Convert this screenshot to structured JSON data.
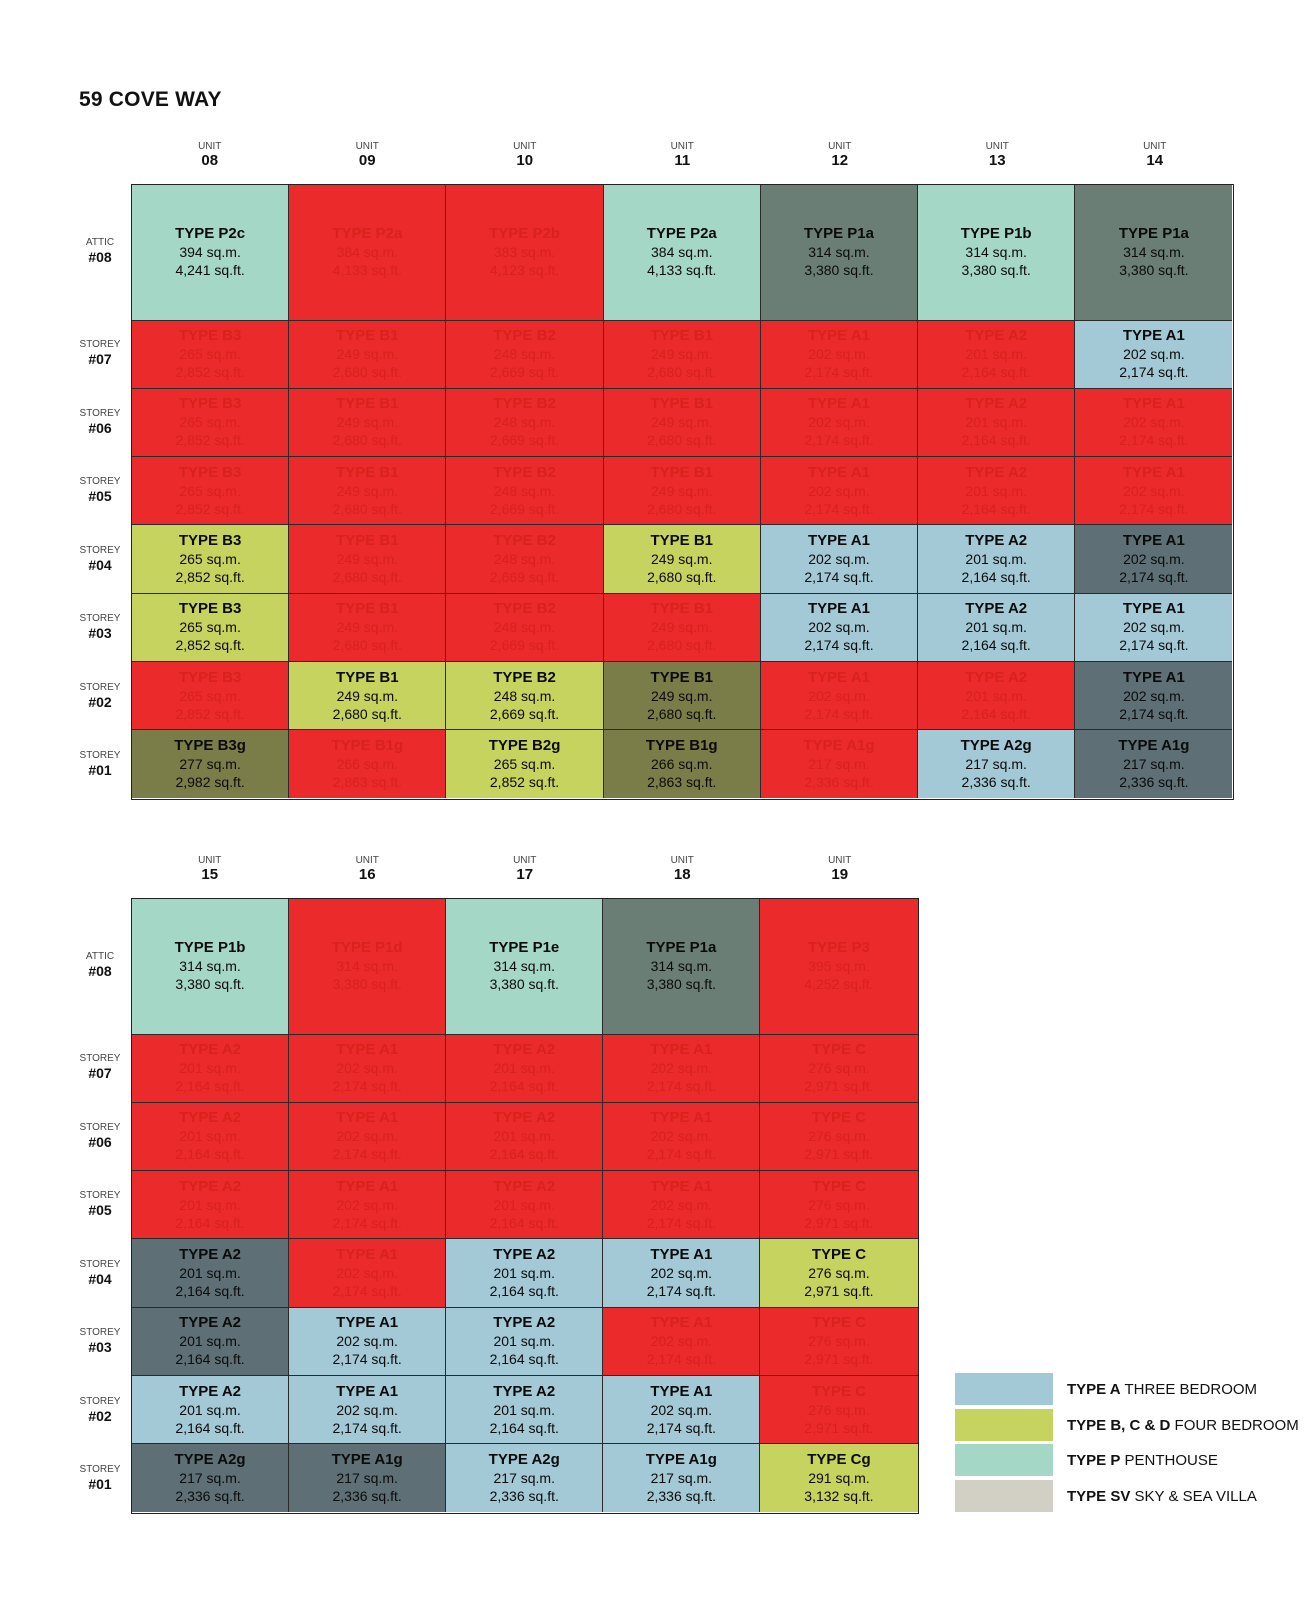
{
  "title": "59 COVE WAY",
  "colors": {
    "typeA": "#a3c9d6",
    "typeB": "#c6d35e",
    "typeP": "#a5d7c7",
    "typeSV": "#d2d0c4",
    "sold": "#ea2a2b",
    "darkgrey": "#5e7075",
    "greygreen": "#6a7e76",
    "olive": "#7b7d48"
  },
  "unit_label": "UNIT",
  "attic_label": "ATTIC",
  "storey_label": "STOREY",
  "block1": {
    "units": [
      "08",
      "09",
      "10",
      "11",
      "12",
      "13",
      "14"
    ],
    "rows": [
      {
        "label": "ATTIC",
        "num": "#08",
        "cells": [
          {
            "type": "TYPE P2c",
            "sqm": "394 sq.m.",
            "sqft": "4,241 sq.ft.",
            "bg": "typeP",
            "sold": false
          },
          {
            "type": "TYPE P2a",
            "sqm": "384 sq.m.",
            "sqft": "4,133 sq.ft.",
            "bg": "sold",
            "sold": true
          },
          {
            "type": "TYPE P2b",
            "sqm": "383 sq.m.",
            "sqft": "4,123 sq.ft.",
            "bg": "sold",
            "sold": true
          },
          {
            "type": "TYPE P2a",
            "sqm": "384 sq.m.",
            "sqft": "4,133 sq.ft.",
            "bg": "typeP",
            "sold": false
          },
          {
            "type": "TYPE P1a",
            "sqm": "314 sq.m.",
            "sqft": "3,380 sq.ft.",
            "bg": "greygreen",
            "sold": false
          },
          {
            "type": "TYPE P1b",
            "sqm": "314 sq.m.",
            "sqft": "3,380 sq.ft.",
            "bg": "typeP",
            "sold": false
          },
          {
            "type": "TYPE P1a",
            "sqm": "314 sq.m.",
            "sqft": "3,380 sq.ft.",
            "bg": "greygreen",
            "sold": false
          }
        ]
      },
      {
        "label": "STOREY",
        "num": "#07",
        "cells": [
          {
            "type": "TYPE B3",
            "sqm": "265 sq.m.",
            "sqft": "2,852 sq.ft.",
            "bg": "sold",
            "sold": true
          },
          {
            "type": "TYPE B1",
            "sqm": "249 sq.m.",
            "sqft": "2,680 sq.ft.",
            "bg": "sold",
            "sold": true
          },
          {
            "type": "TYPE B2",
            "sqm": "248 sq.m.",
            "sqft": "2,669 sq.ft.",
            "bg": "sold",
            "sold": true
          },
          {
            "type": "TYPE B1",
            "sqm": "249 sq.m.",
            "sqft": "2,680 sq.ft.",
            "bg": "sold",
            "sold": true
          },
          {
            "type": "TYPE A1",
            "sqm": "202 sq.m.",
            "sqft": "2,174 sq.ft.",
            "bg": "sold",
            "sold": true
          },
          {
            "type": "TYPE A2",
            "sqm": "201 sq.m.",
            "sqft": "2,164 sq.ft.",
            "bg": "sold",
            "sold": true
          },
          {
            "type": "TYPE A1",
            "sqm": "202 sq.m.",
            "sqft": "2,174 sq.ft.",
            "bg": "typeA",
            "sold": false
          }
        ]
      },
      {
        "label": "STOREY",
        "num": "#06",
        "cells": [
          {
            "type": "TYPE B3",
            "sqm": "265 sq.m.",
            "sqft": "2,852 sq.ft.",
            "bg": "sold",
            "sold": true
          },
          {
            "type": "TYPE B1",
            "sqm": "249 sq.m.",
            "sqft": "2,680 sq.ft.",
            "bg": "sold",
            "sold": true
          },
          {
            "type": "TYPE B2",
            "sqm": "248 sq.m.",
            "sqft": "2,669 sq.ft.",
            "bg": "sold",
            "sold": true
          },
          {
            "type": "TYPE B1",
            "sqm": "249 sq.m.",
            "sqft": "2,680 sq.ft.",
            "bg": "sold",
            "sold": true
          },
          {
            "type": "TYPE A1",
            "sqm": "202 sq.m.",
            "sqft": "2,174 sq.ft.",
            "bg": "sold",
            "sold": true
          },
          {
            "type": "TYPE A2",
            "sqm": "201 sq.m.",
            "sqft": "2,164 sq.ft.",
            "bg": "sold",
            "sold": true
          },
          {
            "type": "TYPE A1",
            "sqm": "202 sq.m.",
            "sqft": "2,174 sq.ft.",
            "bg": "sold",
            "sold": true
          }
        ]
      },
      {
        "label": "STOREY",
        "num": "#05",
        "cells": [
          {
            "type": "TYPE B3",
            "sqm": "265 sq.m.",
            "sqft": "2,852 sq.ft.",
            "bg": "sold",
            "sold": true
          },
          {
            "type": "TYPE B1",
            "sqm": "249 sq.m.",
            "sqft": "2,680 sq.ft.",
            "bg": "sold",
            "sold": true
          },
          {
            "type": "TYPE B2",
            "sqm": "248 sq.m.",
            "sqft": "2,669 sq.ft.",
            "bg": "sold",
            "sold": true
          },
          {
            "type": "TYPE B1",
            "sqm": "249 sq.m.",
            "sqft": "2,680 sq.ft.",
            "bg": "sold",
            "sold": true
          },
          {
            "type": "TYPE A1",
            "sqm": "202 sq.m.",
            "sqft": "2,174 sq.ft.",
            "bg": "sold",
            "sold": true
          },
          {
            "type": "TYPE A2",
            "sqm": "201 sq.m.",
            "sqft": "2,164 sq.ft.",
            "bg": "sold",
            "sold": true
          },
          {
            "type": "TYPE A1",
            "sqm": "202 sq.m.",
            "sqft": "2,174 sq.ft.",
            "bg": "sold",
            "sold": true
          }
        ]
      },
      {
        "label": "STOREY",
        "num": "#04",
        "cells": [
          {
            "type": "TYPE B3",
            "sqm": "265 sq.m.",
            "sqft": "2,852 sq.ft.",
            "bg": "typeB",
            "sold": false
          },
          {
            "type": "TYPE B1",
            "sqm": "249 sq.m.",
            "sqft": "2,680 sq.ft.",
            "bg": "sold",
            "sold": true
          },
          {
            "type": "TYPE B2",
            "sqm": "248 sq.m.",
            "sqft": "2,669 sq.ft.",
            "bg": "sold",
            "sold": true
          },
          {
            "type": "TYPE B1",
            "sqm": "249 sq.m.",
            "sqft": "2,680 sq.ft.",
            "bg": "typeB",
            "sold": false
          },
          {
            "type": "TYPE A1",
            "sqm": "202 sq.m.",
            "sqft": "2,174 sq.ft.",
            "bg": "typeA",
            "sold": false
          },
          {
            "type": "TYPE A2",
            "sqm": "201 sq.m.",
            "sqft": "2,164 sq.ft.",
            "bg": "typeA",
            "sold": false
          },
          {
            "type": "TYPE A1",
            "sqm": "202 sq.m.",
            "sqft": "2,174 sq.ft.",
            "bg": "darkgrey",
            "sold": false
          }
        ]
      },
      {
        "label": "STOREY",
        "num": "#03",
        "cells": [
          {
            "type": "TYPE B3",
            "sqm": "265 sq.m.",
            "sqft": "2,852 sq.ft.",
            "bg": "typeB",
            "sold": false
          },
          {
            "type": "TYPE B1",
            "sqm": "249 sq.m.",
            "sqft": "2,680 sq.ft.",
            "bg": "sold",
            "sold": true
          },
          {
            "type": "TYPE B2",
            "sqm": "248 sq.m.",
            "sqft": "2,669 sq.ft.",
            "bg": "sold",
            "sold": true
          },
          {
            "type": "TYPE B1",
            "sqm": "249 sq.m.",
            "sqft": "2,680 sq.ft.",
            "bg": "sold",
            "sold": true
          },
          {
            "type": "TYPE A1",
            "sqm": "202 sq.m.",
            "sqft": "2,174 sq.ft.",
            "bg": "typeA",
            "sold": false
          },
          {
            "type": "TYPE A2",
            "sqm": "201 sq.m.",
            "sqft": "2,164 sq.ft.",
            "bg": "typeA",
            "sold": false
          },
          {
            "type": "TYPE A1",
            "sqm": "202 sq.m.",
            "sqft": "2,174 sq.ft.",
            "bg": "typeA",
            "sold": false
          }
        ]
      },
      {
        "label": "STOREY",
        "num": "#02",
        "cells": [
          {
            "type": "TYPE B3",
            "sqm": "265 sq.m.",
            "sqft": "2,852 sq.ft.",
            "bg": "sold",
            "sold": true
          },
          {
            "type": "TYPE B1",
            "sqm": "249 sq.m.",
            "sqft": "2,680 sq.ft.",
            "bg": "typeB",
            "sold": false
          },
          {
            "type": "TYPE B2",
            "sqm": "248 sq.m.",
            "sqft": "2,669 sq.ft.",
            "bg": "typeB",
            "sold": false
          },
          {
            "type": "TYPE B1",
            "sqm": "249 sq.m.",
            "sqft": "2,680 sq.ft.",
            "bg": "olive",
            "sold": false
          },
          {
            "type": "TYPE A1",
            "sqm": "202 sq.m.",
            "sqft": "2,174 sq.ft.",
            "bg": "sold",
            "sold": true
          },
          {
            "type": "TYPE A2",
            "sqm": "201 sq.m.",
            "sqft": "2,164 sq.ft.",
            "bg": "sold",
            "sold": true
          },
          {
            "type": "TYPE A1",
            "sqm": "202 sq.m.",
            "sqft": "2,174 sq.ft.",
            "bg": "darkgrey",
            "sold": false
          }
        ]
      },
      {
        "label": "STOREY",
        "num": "#01",
        "cells": [
          {
            "type": "TYPE B3g",
            "sqm": "277 sq.m.",
            "sqft": "2,982 sq.ft.",
            "bg": "olive",
            "sold": false
          },
          {
            "type": "TYPE B1g",
            "sqm": "266 sq.m.",
            "sqft": "2,863 sq.ft.",
            "bg": "sold",
            "sold": true
          },
          {
            "type": "TYPE B2g",
            "sqm": "265 sq.m.",
            "sqft": "2,852 sq.ft.",
            "bg": "typeB",
            "sold": false
          },
          {
            "type": "TYPE B1g",
            "sqm": "266 sq.m.",
            "sqft": "2,863 sq.ft.",
            "bg": "olive",
            "sold": false
          },
          {
            "type": "TYPE A1g",
            "sqm": "217 sq.m.",
            "sqft": "2,336 sq.ft.",
            "bg": "sold",
            "sold": true
          },
          {
            "type": "TYPE A2g",
            "sqm": "217 sq.m.",
            "sqft": "2,336 sq.ft.",
            "bg": "typeA",
            "sold": false
          },
          {
            "type": "TYPE A1g",
            "sqm": "217 sq.m.",
            "sqft": "2,336 sq.ft.",
            "bg": "darkgrey",
            "sold": false
          }
        ]
      }
    ]
  },
  "block2": {
    "units": [
      "15",
      "16",
      "17",
      "18",
      "19"
    ],
    "rows": [
      {
        "label": "ATTIC",
        "num": "#08",
        "cells": [
          {
            "type": "TYPE P1b",
            "sqm": "314 sq.m.",
            "sqft": "3,380 sq.ft.",
            "bg": "typeP",
            "sold": false
          },
          {
            "type": "TYPE P1d",
            "sqm": "314 sq.m.",
            "sqft": "3,380 sq.ft.",
            "bg": "sold",
            "sold": true
          },
          {
            "type": "TYPE P1e",
            "sqm": "314 sq.m.",
            "sqft": "3,380 sq.ft.",
            "bg": "typeP",
            "sold": false
          },
          {
            "type": "TYPE P1a",
            "sqm": "314 sq.m.",
            "sqft": "3,380 sq.ft.",
            "bg": "greygreen",
            "sold": false
          },
          {
            "type": "TYPE P3",
            "sqm": "395 sq.m.",
            "sqft": "4,252 sq.ft.",
            "bg": "sold",
            "sold": true
          }
        ]
      },
      {
        "label": "STOREY",
        "num": "#07",
        "cells": [
          {
            "type": "TYPE A2",
            "sqm": "201 sq.m.",
            "sqft": "2,164 sq.ft.",
            "bg": "sold",
            "sold": true
          },
          {
            "type": "TYPE A1",
            "sqm": "202 sq.m.",
            "sqft": "2,174 sq.ft.",
            "bg": "sold",
            "sold": true
          },
          {
            "type": "TYPE A2",
            "sqm": "201 sq.m.",
            "sqft": "2,164 sq.ft.",
            "bg": "sold",
            "sold": true
          },
          {
            "type": "TYPE A1",
            "sqm": "202 sq.m.",
            "sqft": "2,174 sq.ft.",
            "bg": "sold",
            "sold": true
          },
          {
            "type": "TYPE C",
            "sqm": "276 sq.m.",
            "sqft": "2,971 sq.ft.",
            "bg": "sold",
            "sold": true
          }
        ]
      },
      {
        "label": "STOREY",
        "num": "#06",
        "cells": [
          {
            "type": "TYPE A2",
            "sqm": "201 sq.m.",
            "sqft": "2,164 sq.ft.",
            "bg": "sold",
            "sold": true
          },
          {
            "type": "TYPE A1",
            "sqm": "202 sq.m.",
            "sqft": "2,174 sq.ft.",
            "bg": "sold",
            "sold": true
          },
          {
            "type": "TYPE A2",
            "sqm": "201 sq.m.",
            "sqft": "2,164 sq.ft.",
            "bg": "sold",
            "sold": true
          },
          {
            "type": "TYPE A1",
            "sqm": "202 sq.m.",
            "sqft": "2,174 sq.ft.",
            "bg": "sold",
            "sold": true
          },
          {
            "type": "TYPE C",
            "sqm": "276 sq.m.",
            "sqft": "2,971 sq.ft.",
            "bg": "sold",
            "sold": true
          }
        ]
      },
      {
        "label": "STOREY",
        "num": "#05",
        "cells": [
          {
            "type": "TYPE A2",
            "sqm": "201 sq.m.",
            "sqft": "2,164 sq.ft.",
            "bg": "sold",
            "sold": true
          },
          {
            "type": "TYPE A1",
            "sqm": "202 sq.m.",
            "sqft": "2,174 sq.ft.",
            "bg": "sold",
            "sold": true
          },
          {
            "type": "TYPE A2",
            "sqm": "201 sq.m.",
            "sqft": "2,164 sq.ft.",
            "bg": "sold",
            "sold": true
          },
          {
            "type": "TYPE A1",
            "sqm": "202 sq.m.",
            "sqft": "2,174 sq.ft.",
            "bg": "sold",
            "sold": true
          },
          {
            "type": "TYPE C",
            "sqm": "276 sq.m.",
            "sqft": "2,971 sq.ft.",
            "bg": "sold",
            "sold": true
          }
        ]
      },
      {
        "label": "STOREY",
        "num": "#04",
        "cells": [
          {
            "type": "TYPE A2",
            "sqm": "201 sq.m.",
            "sqft": "2,164 sq.ft.",
            "bg": "darkgrey",
            "sold": false
          },
          {
            "type": "TYPE A1",
            "sqm": "202 sq.m.",
            "sqft": "2,174 sq.ft.",
            "bg": "sold",
            "sold": true
          },
          {
            "type": "TYPE A2",
            "sqm": "201 sq.m.",
            "sqft": "2,164 sq.ft.",
            "bg": "typeA",
            "sold": false
          },
          {
            "type": "TYPE A1",
            "sqm": "202 sq.m.",
            "sqft": "2,174 sq.ft.",
            "bg": "typeA",
            "sold": false
          },
          {
            "type": "TYPE C",
            "sqm": "276 sq.m.",
            "sqft": "2,971 sq.ft.",
            "bg": "typeB",
            "sold": false
          }
        ]
      },
      {
        "label": "STOREY",
        "num": "#03",
        "cells": [
          {
            "type": "TYPE A2",
            "sqm": "201 sq.m.",
            "sqft": "2,164 sq.ft.",
            "bg": "darkgrey",
            "sold": false
          },
          {
            "type": "TYPE A1",
            "sqm": "202 sq.m.",
            "sqft": "2,174 sq.ft.",
            "bg": "typeA",
            "sold": false
          },
          {
            "type": "TYPE A2",
            "sqm": "201 sq.m.",
            "sqft": "2,164 sq.ft.",
            "bg": "typeA",
            "sold": false
          },
          {
            "type": "TYPE A1",
            "sqm": "202 sq.m.",
            "sqft": "2,174 sq.ft.",
            "bg": "sold",
            "sold": true
          },
          {
            "type": "TYPE C",
            "sqm": "276 sq.m.",
            "sqft": "2,971 sq.ft.",
            "bg": "sold",
            "sold": true
          }
        ]
      },
      {
        "label": "STOREY",
        "num": "#02",
        "cells": [
          {
            "type": "TYPE A2",
            "sqm": "201 sq.m.",
            "sqft": "2,164 sq.ft.",
            "bg": "typeA",
            "sold": false
          },
          {
            "type": "TYPE A1",
            "sqm": "202 sq.m.",
            "sqft": "2,174 sq.ft.",
            "bg": "typeA",
            "sold": false
          },
          {
            "type": "TYPE A2",
            "sqm": "201 sq.m.",
            "sqft": "2,164 sq.ft.",
            "bg": "typeA",
            "sold": false
          },
          {
            "type": "TYPE A1",
            "sqm": "202 sq.m.",
            "sqft": "2,174 sq.ft.",
            "bg": "typeA",
            "sold": false
          },
          {
            "type": "TYPE C",
            "sqm": "276 sq.m.",
            "sqft": "2,971 sq.ft.",
            "bg": "sold",
            "sold": true
          }
        ]
      },
      {
        "label": "STOREY",
        "num": "#01",
        "cells": [
          {
            "type": "TYPE A2g",
            "sqm": "217 sq.m.",
            "sqft": "2,336 sq.ft.",
            "bg": "darkgrey",
            "sold": false
          },
          {
            "type": "TYPE A1g",
            "sqm": "217 sq.m.",
            "sqft": "2,336 sq.ft.",
            "bg": "darkgrey",
            "sold": false
          },
          {
            "type": "TYPE A2g",
            "sqm": "217 sq.m.",
            "sqft": "2,336 sq.ft.",
            "bg": "typeA",
            "sold": false
          },
          {
            "type": "TYPE A1g",
            "sqm": "217 sq.m.",
            "sqft": "2,336 sq.ft.",
            "bg": "typeA",
            "sold": false
          },
          {
            "type": "TYPE Cg",
            "sqm": "291 sq.m.",
            "sqft": "3,132 sq.ft.",
            "bg": "typeB",
            "sold": false
          }
        ]
      }
    ]
  },
  "legend": [
    {
      "bold": "TYPE A",
      "text": " THREE BEDROOM",
      "bg": "typeA"
    },
    {
      "bold": "TYPE B, C & D",
      "text": " FOUR BEDROOM",
      "bg": "typeB"
    },
    {
      "bold": "TYPE P",
      "text": " PENTHOUSE",
      "bg": "typeP"
    },
    {
      "bold": "TYPE SV",
      "text": " SKY & SEA VILLA",
      "bg": "typeSV"
    }
  ]
}
